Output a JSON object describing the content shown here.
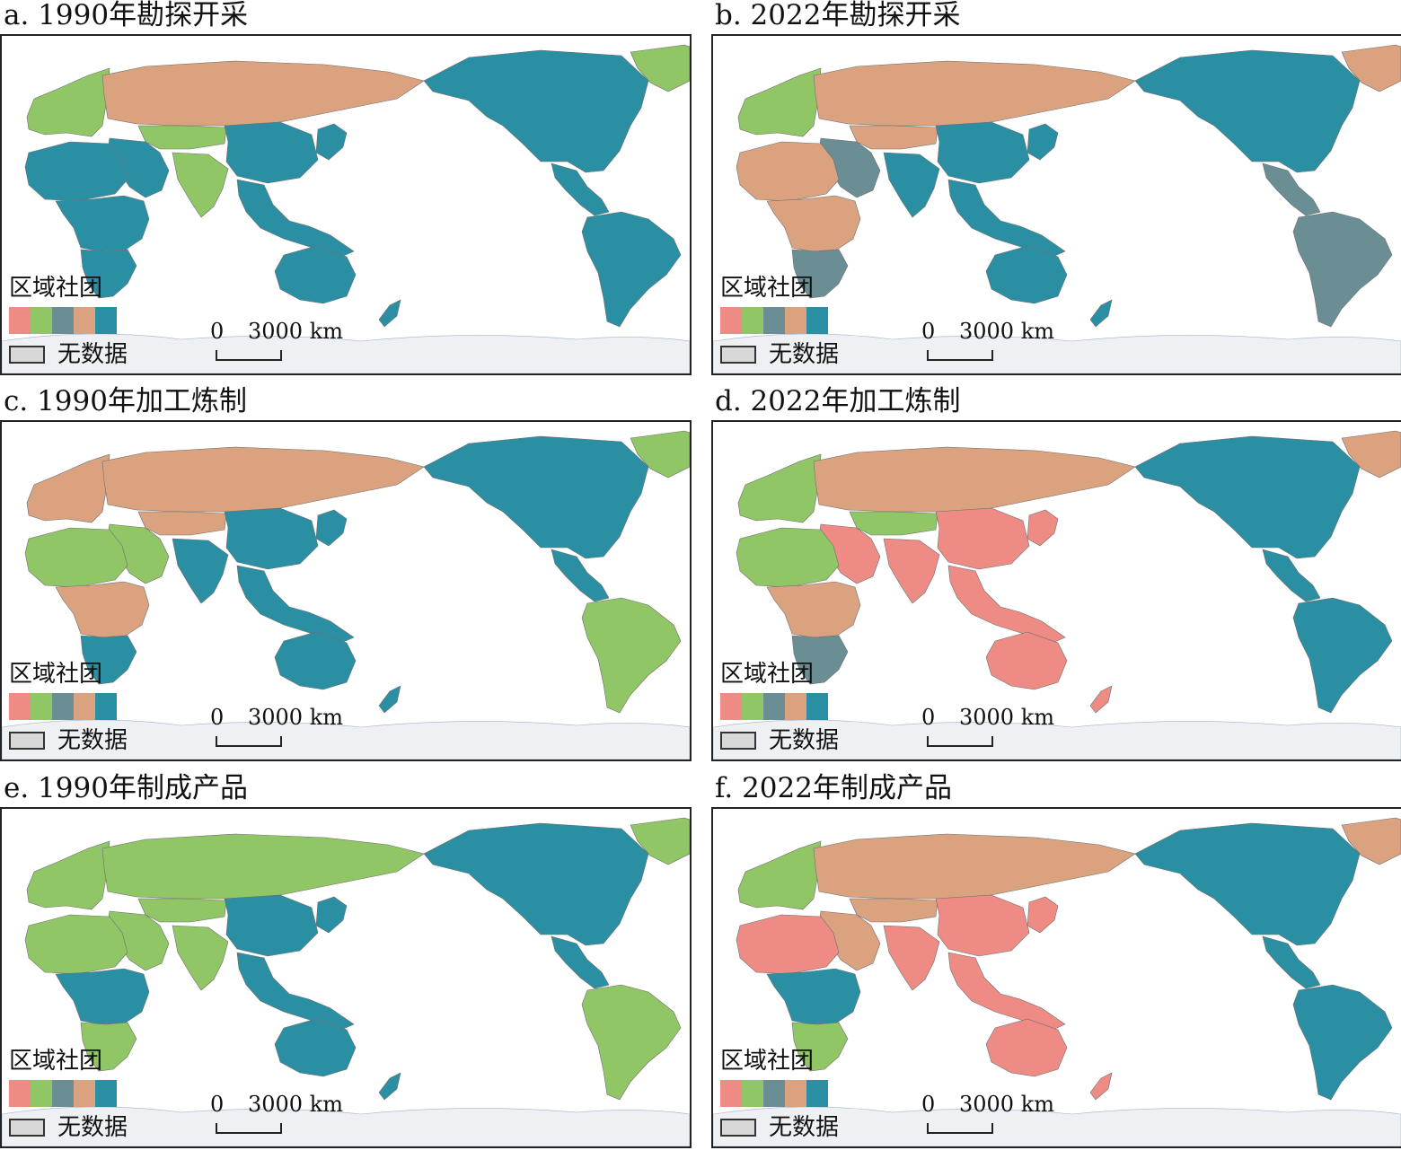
{
  "colors": {
    "pink": "#ee8b84",
    "green": "#90c665",
    "slate": "#6b8e95",
    "orange": "#dba27f",
    "teal": "#2b8fa3",
    "nodata": "#d8d8d8",
    "ice": "#eef0f4"
  },
  "legend": {
    "title": "区域社团",
    "nodata_label": "无数据",
    "swatches": [
      "#ee8b84",
      "#90c665",
      "#6b8e95",
      "#dba27f",
      "#2b8fa3"
    ]
  },
  "scalebar": {
    "zero": "0",
    "distance": "3000 km"
  },
  "panels": [
    {
      "title": "a. 1990年勘探开采",
      "regions": {
        "north_america": "#2b8fa3",
        "central_america": "#2b8fa3",
        "south_america": "#2b8fa3",
        "greenland": "#90c665",
        "europe": "#90c665",
        "russia": "#dba27f",
        "central_asia": "#90c665",
        "middle_east": "#2b8fa3",
        "south_asia": "#90c665",
        "china": "#2b8fa3",
        "se_asia": "#2b8fa3",
        "japan_korea": "#2b8fa3",
        "north_africa": "#2b8fa3",
        "sub_africa": "#2b8fa3",
        "southern_africa": "#2b8fa3",
        "australia": "#2b8fa3",
        "new_zealand": "#2b8fa3"
      }
    },
    {
      "title": "b. 2022年勘探开采",
      "regions": {
        "north_america": "#2b8fa3",
        "central_america": "#6b8e95",
        "south_america": "#6b8e95",
        "greenland": "#dba27f",
        "europe": "#90c665",
        "russia": "#dba27f",
        "central_asia": "#dba27f",
        "middle_east": "#6b8e95",
        "south_asia": "#2b8fa3",
        "china": "#2b8fa3",
        "se_asia": "#2b8fa3",
        "japan_korea": "#2b8fa3",
        "north_africa": "#dba27f",
        "sub_africa": "#dba27f",
        "southern_africa": "#6b8e95",
        "australia": "#2b8fa3",
        "new_zealand": "#2b8fa3"
      }
    },
    {
      "title": "c. 1990年加工炼制",
      "regions": {
        "north_america": "#2b8fa3",
        "central_america": "#2b8fa3",
        "south_america": "#90c665",
        "greenland": "#90c665",
        "europe": "#dba27f",
        "russia": "#dba27f",
        "central_asia": "#dba27f",
        "middle_east": "#90c665",
        "south_asia": "#2b8fa3",
        "china": "#2b8fa3",
        "se_asia": "#2b8fa3",
        "japan_korea": "#2b8fa3",
        "north_africa": "#90c665",
        "sub_africa": "#dba27f",
        "southern_africa": "#2b8fa3",
        "australia": "#2b8fa3",
        "new_zealand": "#2b8fa3"
      }
    },
    {
      "title": "d. 2022年加工炼制",
      "regions": {
        "north_america": "#2b8fa3",
        "central_america": "#2b8fa3",
        "south_america": "#2b8fa3",
        "greenland": "#dba27f",
        "europe": "#90c665",
        "russia": "#dba27f",
        "central_asia": "#90c665",
        "middle_east": "#ee8b84",
        "south_asia": "#ee8b84",
        "china": "#ee8b84",
        "se_asia": "#ee8b84",
        "japan_korea": "#ee8b84",
        "north_africa": "#90c665",
        "sub_africa": "#dba27f",
        "southern_africa": "#6b8e95",
        "australia": "#ee8b84",
        "new_zealand": "#ee8b84"
      }
    },
    {
      "title": "e. 1990年制成产品",
      "regions": {
        "north_america": "#2b8fa3",
        "central_america": "#2b8fa3",
        "south_america": "#90c665",
        "greenland": "#90c665",
        "europe": "#90c665",
        "russia": "#90c665",
        "central_asia": "#90c665",
        "middle_east": "#90c665",
        "south_asia": "#90c665",
        "china": "#2b8fa3",
        "se_asia": "#2b8fa3",
        "japan_korea": "#2b8fa3",
        "north_africa": "#90c665",
        "sub_africa": "#2b8fa3",
        "southern_africa": "#90c665",
        "australia": "#2b8fa3",
        "new_zealand": "#2b8fa3"
      }
    },
    {
      "title": "f. 2022年制成产品",
      "regions": {
        "north_america": "#2b8fa3",
        "central_america": "#2b8fa3",
        "south_america": "#2b8fa3",
        "greenland": "#dba27f",
        "europe": "#90c665",
        "russia": "#dba27f",
        "central_asia": "#dba27f",
        "middle_east": "#dba27f",
        "south_asia": "#ee8b84",
        "china": "#ee8b84",
        "se_asia": "#ee8b84",
        "japan_korea": "#ee8b84",
        "north_africa": "#ee8b84",
        "sub_africa": "#2b8fa3",
        "southern_africa": "#90c665",
        "australia": "#ee8b84",
        "new_zealand": "#ee8b84"
      }
    }
  ]
}
